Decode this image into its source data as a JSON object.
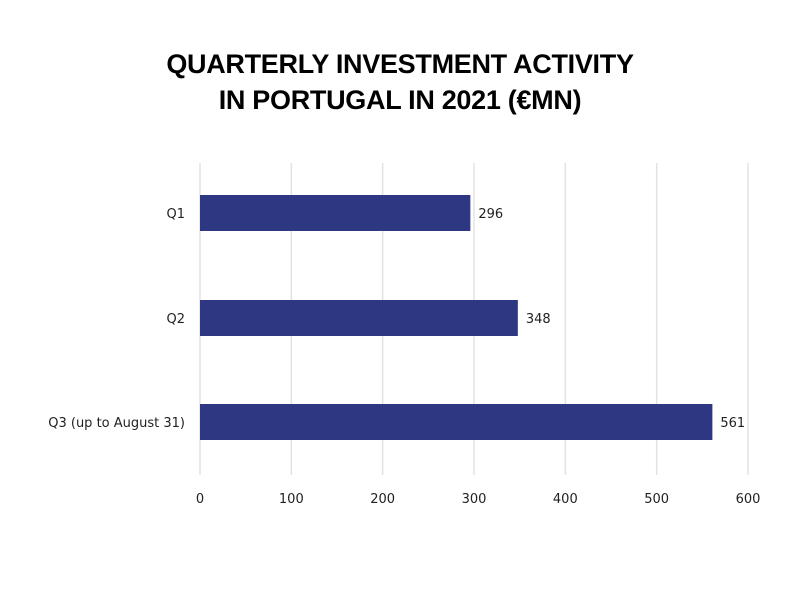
{
  "chart_data": {
    "type": "bar",
    "orientation": "horizontal",
    "title": [
      "QUARTERLY INVESTMENT ACTIVITY",
      "IN PORTUGAL IN 2021 (€MN)"
    ],
    "categories": [
      "Q1",
      "Q2",
      "Q3 (up to August 31)"
    ],
    "values": [
      296,
      348,
      561
    ],
    "xlabel": "",
    "ylabel": "",
    "xlim": [
      0,
      600
    ],
    "xticks": [
      0,
      100,
      200,
      300,
      400,
      500,
      600
    ],
    "grid": true,
    "data_labels": true,
    "bar_color": "#2e3882",
    "grid_color": "#e3e3e3"
  }
}
